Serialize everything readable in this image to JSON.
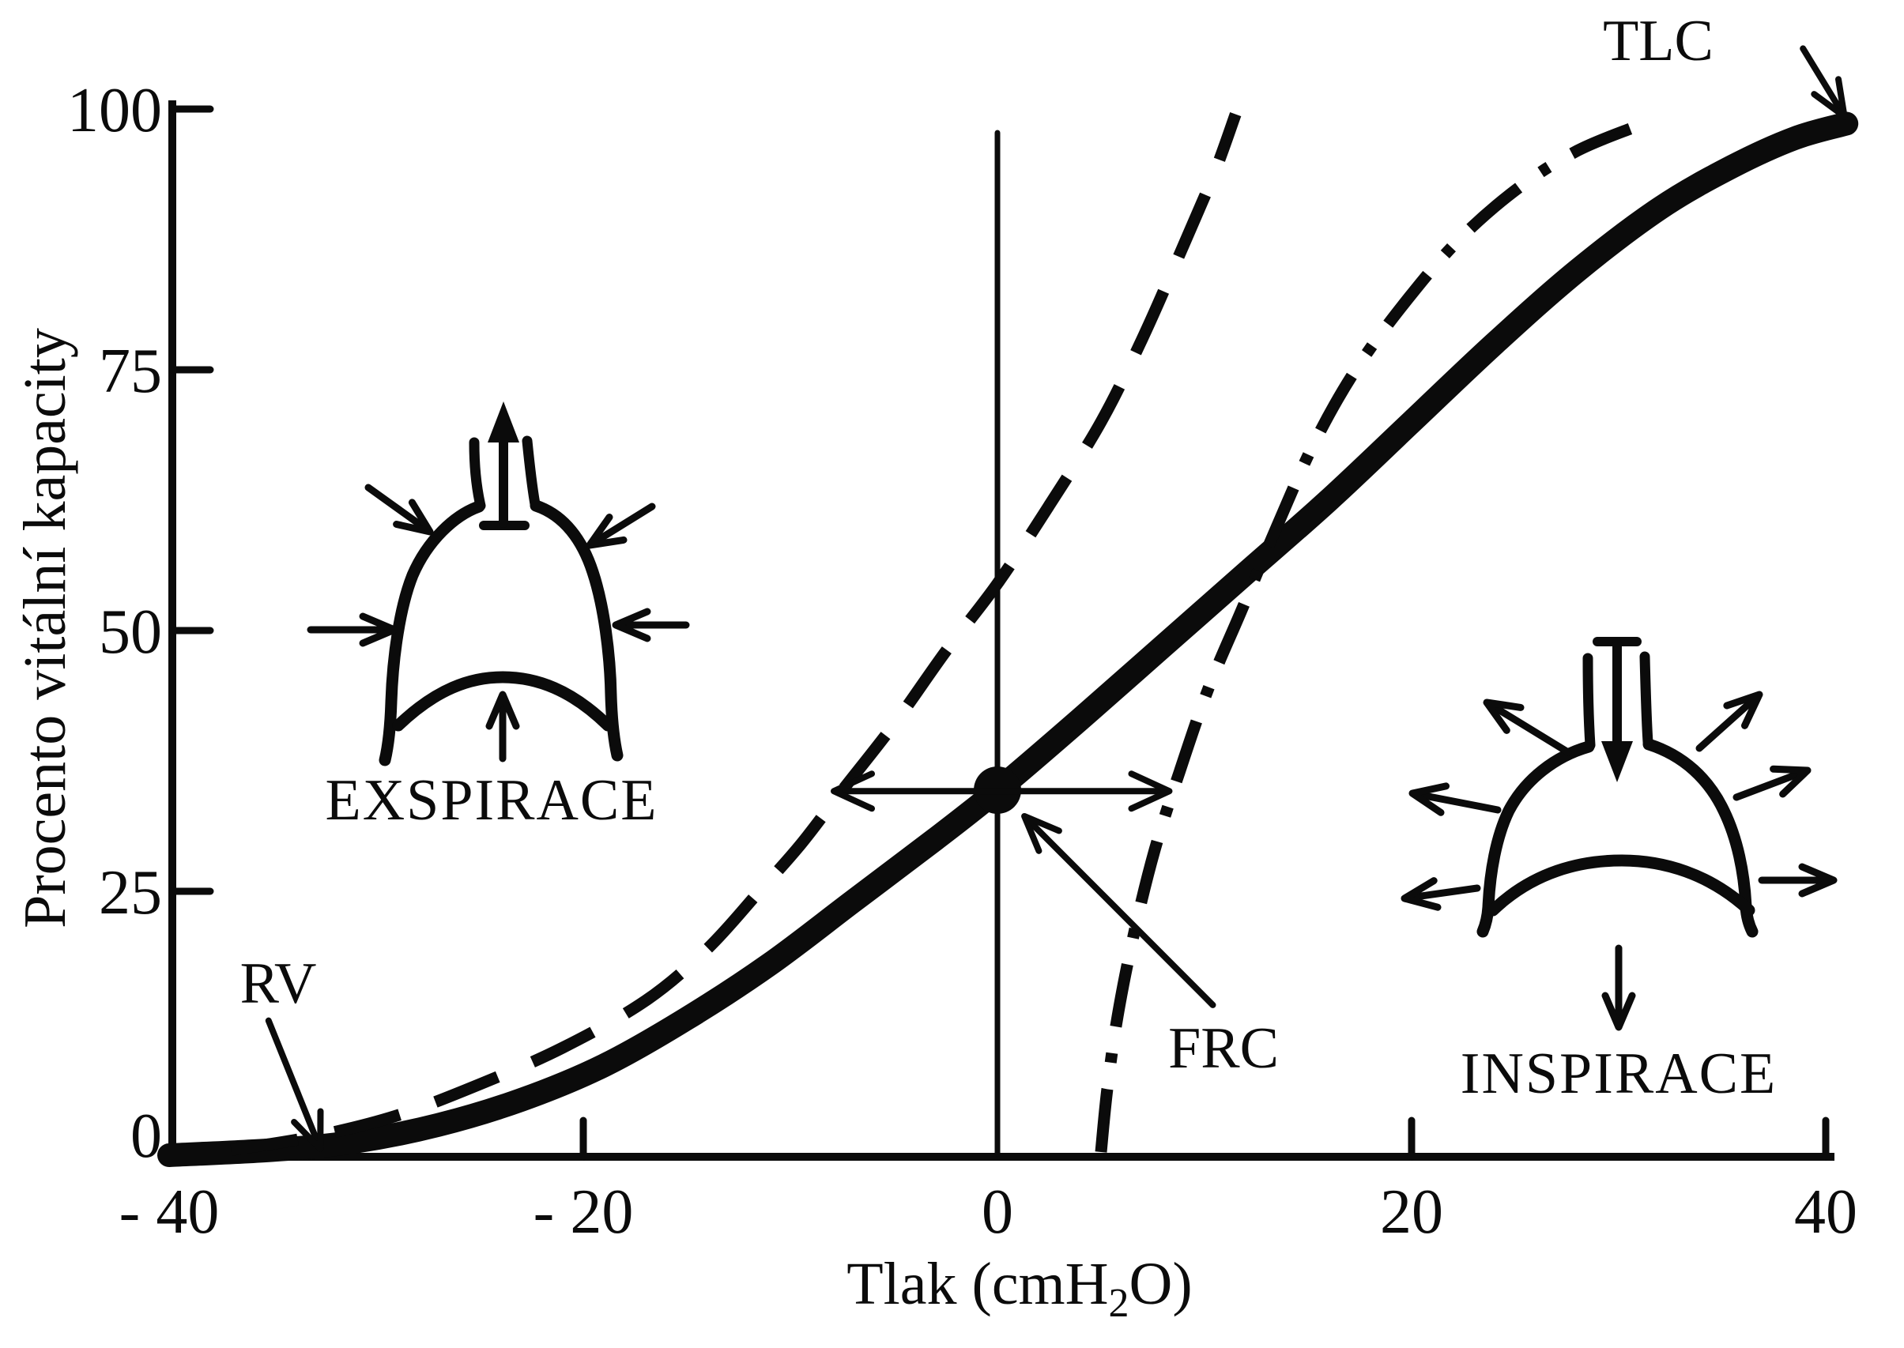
{
  "chart_data": {
    "type": "line",
    "title": "",
    "xlabel": "Tlak (cmH₂O)",
    "ylabel": "Procento vitální kapacity",
    "xlim": [
      -40,
      40
    ],
    "ylim": [
      0,
      100
    ],
    "grid": false,
    "legend_position": "none",
    "x_ticks": [
      {
        "value": -40,
        "label": "- 40"
      },
      {
        "value": -20,
        "label": "- 20"
      },
      {
        "value": 0,
        "label": "0"
      },
      {
        "value": 20,
        "label": "20"
      },
      {
        "value": 40,
        "label": "40"
      }
    ],
    "y_ticks": [
      {
        "value": 100,
        "label": "100"
      },
      {
        "value": 75,
        "label": "75"
      },
      {
        "value": 50,
        "label": "50"
      },
      {
        "value": 25,
        "label": "25"
      },
      {
        "value": 0,
        "label": "0"
      }
    ],
    "series": [
      {
        "name": "solid_thick_curve",
        "style": "solid-thick",
        "points": [
          [
            -40,
            -0.3
          ],
          [
            -35,
            0.2
          ],
          [
            -31,
            1
          ],
          [
            -27,
            2.6
          ],
          [
            -23,
            5
          ],
          [
            -19,
            8.3
          ],
          [
            -15,
            12.8
          ],
          [
            -11,
            18
          ],
          [
            -7,
            24
          ],
          [
            -3,
            30
          ],
          [
            0,
            34.7
          ],
          [
            4,
            41.5
          ],
          [
            8,
            48.5
          ],
          [
            12,
            55.5
          ],
          [
            16,
            62.5
          ],
          [
            20,
            70
          ],
          [
            24,
            77.5
          ],
          [
            28,
            84.5
          ],
          [
            32,
            90.5
          ],
          [
            35.5,
            94.5
          ],
          [
            38.5,
            97.2
          ],
          [
            41,
            98.6
          ]
        ]
      },
      {
        "name": "dashed_curve",
        "style": "dashed",
        "points": [
          [
            -37,
            0.2
          ],
          [
            -33,
            1.5
          ],
          [
            -29,
            3.5
          ],
          [
            -25,
            6.5
          ],
          [
            -21,
            10
          ],
          [
            -17,
            14.5
          ],
          [
            -14,
            19.5
          ],
          [
            -11.5,
            25
          ],
          [
            -9.5,
            29.5
          ],
          [
            -7.6,
            34.4
          ],
          [
            -5,
            41
          ],
          [
            -2.5,
            48
          ],
          [
            0,
            54.5
          ],
          [
            2.5,
            62
          ],
          [
            5,
            70
          ],
          [
            7,
            78
          ],
          [
            9,
            87
          ],
          [
            10.5,
            94
          ],
          [
            11.5,
            99.5
          ]
        ]
      },
      {
        "name": "dash_dot_curve",
        "style": "dash-dot",
        "points": [
          [
            5,
            0
          ],
          [
            5.3,
            6
          ],
          [
            5.8,
            13
          ],
          [
            6.6,
            21
          ],
          [
            7.6,
            29
          ],
          [
            8.8,
            36.5
          ],
          [
            10.2,
            44.5
          ],
          [
            11.8,
            52
          ],
          [
            13.5,
            60
          ],
          [
            15.3,
            68
          ],
          [
            17.3,
            75
          ],
          [
            19.7,
            81.5
          ],
          [
            22.3,
            87.5
          ],
          [
            25.2,
            92.5
          ],
          [
            28,
            96
          ],
          [
            30.8,
            98.3
          ]
        ]
      }
    ],
    "point_markers": [
      {
        "x": 0,
        "y": 34.7
      }
    ],
    "annotations": {
      "tlc": {
        "text": "TLC",
        "arrow": [
          38.9,
          105.8,
          40.9,
          99.3
        ]
      },
      "rv": {
        "text": "RV",
        "arrow": [
          -35.2,
          12.6,
          -32.7,
          0.3
        ]
      },
      "frc": {
        "text": "FRC",
        "arrow": [
          10.4,
          14.1,
          1.3,
          32.2
        ]
      },
      "frc_range_arrow": {
        "y": 34.6,
        "x1": -7.9,
        "x2": 8.3
      }
    },
    "insets": [
      {
        "label": "EXSPIRACE"
      },
      {
        "label": "INSPIRACE"
      }
    ],
    "ink_color": "#0b0b0b",
    "background_color": "#ffffff"
  }
}
